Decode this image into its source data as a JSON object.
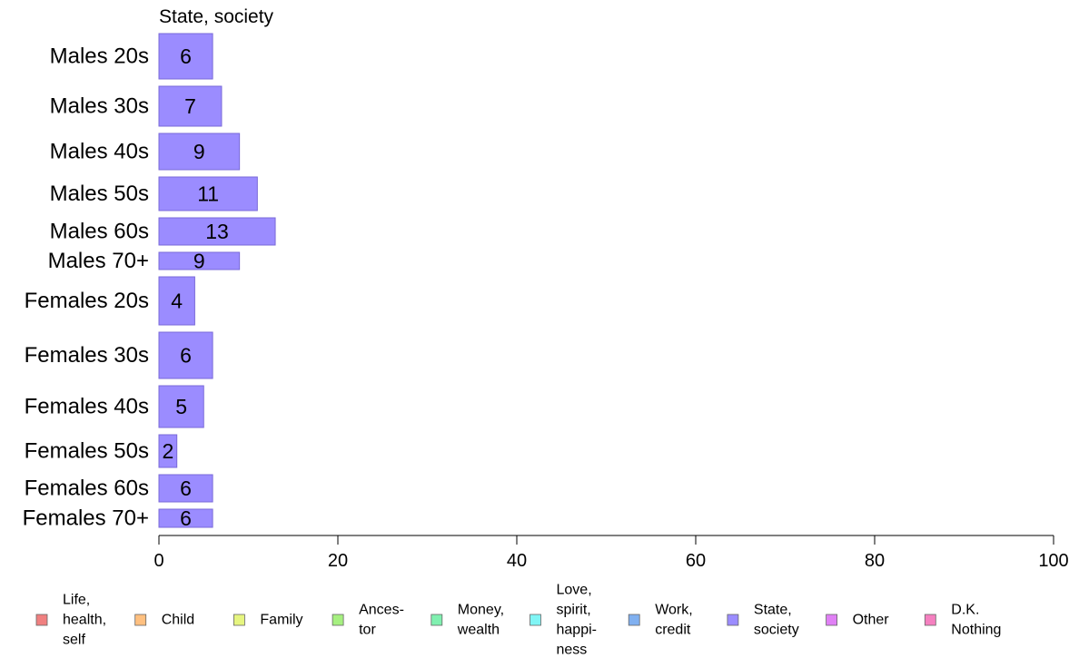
{
  "chart_data": {
    "type": "bar",
    "orientation": "horizontal",
    "title": "State, society",
    "categories": [
      "Males 20s",
      "Males 30s",
      "Males 40s",
      "Males 50s",
      "Males 60s",
      "Males 70+",
      "Females 20s",
      "Females 30s",
      "Females 40s",
      "Females 50s",
      "Females 60s",
      "Females 70+"
    ],
    "values": [
      6,
      7,
      9,
      11,
      13,
      9,
      4,
      6,
      5,
      2,
      6,
      6
    ],
    "data_labels": [
      "6",
      "7",
      "9",
      "11",
      "13",
      "9",
      "4",
      "6",
      "5",
      "2",
      "6",
      "6"
    ],
    "xlim": [
      0,
      100
    ],
    "xticks": [
      "0",
      "20",
      "40",
      "60",
      "80",
      "100"
    ],
    "xlabel": "",
    "ylabel": "",
    "grid": false,
    "bar_color": "#9b8cff",
    "bar_edge_color": "#7a6ad8",
    "legend_position": "bottom",
    "legend": [
      {
        "lines": [
          "Life,",
          "health,",
          "self"
        ],
        "color": "#f08080"
      },
      {
        "lines": [
          "Child"
        ],
        "color": "#ffc080"
      },
      {
        "lines": [
          "Family"
        ],
        "color": "#e6f580"
      },
      {
        "lines": [
          "Ances-",
          "tor"
        ],
        "color": "#a6f080"
      },
      {
        "lines": [
          "Money,",
          "wealth"
        ],
        "color": "#80f0b0"
      },
      {
        "lines": [
          "Love,",
          "spirit,",
          "happi-",
          "ness"
        ],
        "color": "#80f5f5"
      },
      {
        "lines": [
          "Work,",
          "credit"
        ],
        "color": "#80b0f0"
      },
      {
        "lines": [
          "State,",
          "society"
        ],
        "color": "#9b8cff"
      },
      {
        "lines": [
          "Other"
        ],
        "color": "#e080f5"
      },
      {
        "lines": [
          "D.K.",
          "Nothing"
        ],
        "color": "#f580c0"
      }
    ]
  }
}
